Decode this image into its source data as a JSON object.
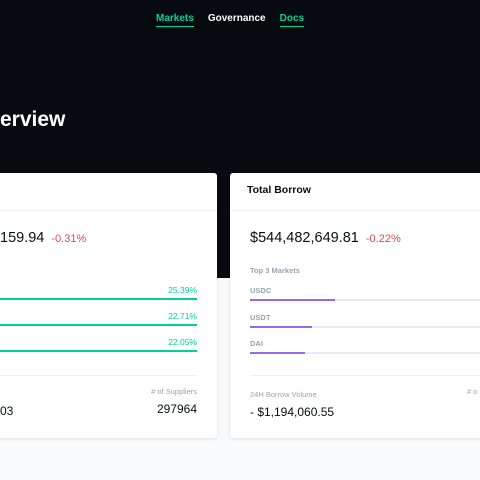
{
  "nav": {
    "items": [
      {
        "label": "Markets",
        "active": true
      },
      {
        "label": "Governance",
        "active": false
      },
      {
        "label": "Docs",
        "active": true
      }
    ]
  },
  "hero": {
    "title": "erview"
  },
  "supply_card": {
    "total": "159.94",
    "change": "-0.31%",
    "markets": [
      {
        "pct": "25.39%",
        "fill": 1.0
      },
      {
        "pct": "22.71%",
        "fill": 1.0
      },
      {
        "pct": "22.05%",
        "fill": 1.0
      }
    ],
    "suppliers_label": "# of Suppliers",
    "suppliers_value": "297964",
    "volume_value": "03"
  },
  "borrow_card": {
    "title": "Total Borrow",
    "total": "$544,482,649.81",
    "change": "-0.22%",
    "top_markets_label": "Top 3 Markets",
    "markets": [
      {
        "name": "USDC",
        "fill": 0.37
      },
      {
        "name": "USDT",
        "fill": 0.27
      },
      {
        "name": "DAI",
        "fill": 0.24
      }
    ],
    "volume_label": "24H Borrow Volume",
    "volume_value": "- $1,194,060.55",
    "right_label": "# o"
  },
  "colors": {
    "brand_green": "#00d395",
    "borrow_purple": "#9669ed",
    "negative_red": "#e0484f",
    "hero_bg": "#070a0e"
  }
}
